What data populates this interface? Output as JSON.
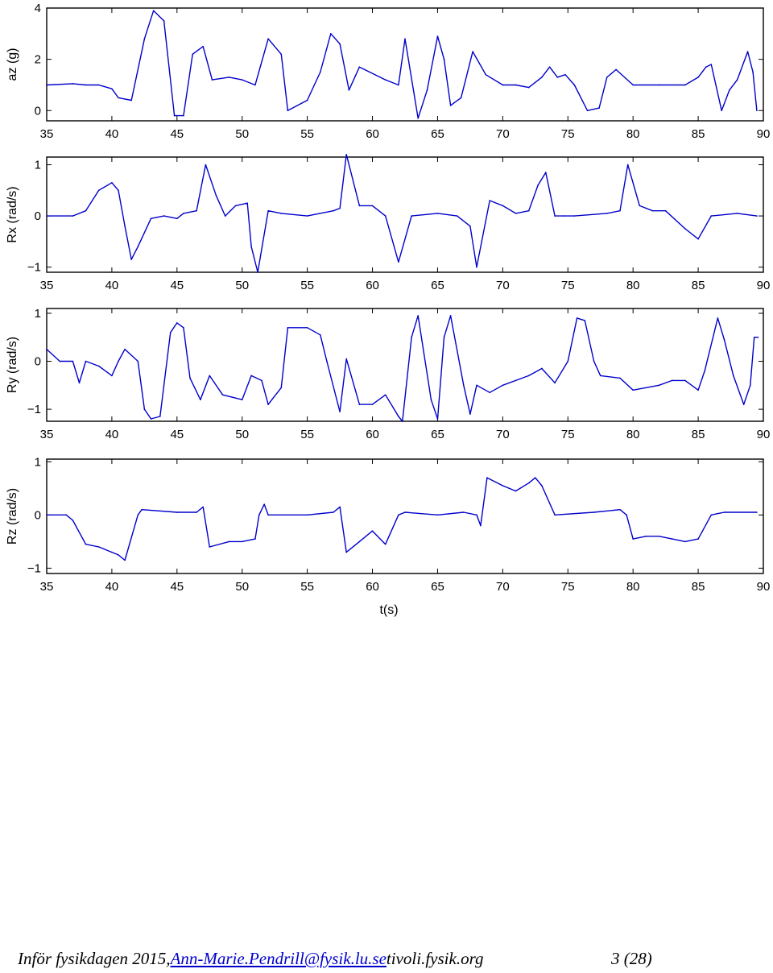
{
  "chart_data": [
    {
      "type": "line",
      "ylabel": "az (g)",
      "xlabel": "",
      "xlim": [
        35,
        90
      ],
      "ylim": [
        -0.4,
        4
      ],
      "yticks": [
        "0",
        "2",
        "4"
      ],
      "xticks": [
        "35",
        "40",
        "45",
        "50",
        "55",
        "60",
        "65",
        "70",
        "75",
        "80",
        "85",
        "90"
      ],
      "color": "#0000cc",
      "x": [
        35,
        37,
        38,
        39,
        40,
        40.5,
        41.5,
        42.5,
        43.2,
        44,
        44.8,
        45.5,
        46.2,
        47,
        47.7,
        49,
        50,
        51,
        52,
        53,
        53.5,
        55,
        56,
        56.8,
        57.5,
        58.2,
        59,
        61,
        62,
        62.5,
        63.5,
        64.2,
        65,
        65.5,
        66,
        66.8,
        67.7,
        68.7,
        70,
        71,
        72,
        73,
        73.6,
        74.2,
        74.8,
        75.5,
        76.5,
        77.4,
        78,
        78.7,
        80,
        82,
        84,
        85,
        85.6,
        86,
        86.8,
        87.4,
        88,
        88.8,
        89.2,
        89.5
      ],
      "values": [
        1.0,
        1.05,
        1.0,
        1.0,
        0.85,
        0.5,
        0.4,
        2.8,
        3.9,
        3.5,
        -0.2,
        -0.2,
        2.2,
        2.5,
        1.2,
        1.3,
        1.2,
        1.0,
        2.8,
        2.2,
        0.0,
        0.4,
        1.5,
        3.0,
        2.6,
        0.8,
        1.7,
        1.2,
        1.0,
        2.8,
        -0.3,
        0.8,
        2.9,
        2.0,
        0.2,
        0.5,
        2.3,
        1.4,
        1.0,
        1.0,
        0.9,
        1.3,
        1.7,
        1.3,
        1.4,
        1.0,
        0.0,
        0.1,
        1.3,
        1.6,
        1.0,
        1.0,
        1.0,
        1.3,
        1.7,
        1.8,
        0.0,
        0.8,
        1.2,
        2.3,
        1.5,
        0.0
      ]
    },
    {
      "type": "line",
      "ylabel": "Rx (rad/s)",
      "xlabel": "",
      "xlim": [
        35,
        90
      ],
      "ylim": [
        -1.1,
        1.15
      ],
      "yticks": [
        "−1",
        "0",
        "1"
      ],
      "xticks": [
        "35",
        "40",
        "45",
        "50",
        "55",
        "60",
        "65",
        "70",
        "75",
        "80",
        "85",
        "90"
      ],
      "color": "#0000cc",
      "x": [
        35,
        37,
        38,
        39,
        40,
        40.5,
        41,
        41.5,
        42,
        43,
        44,
        45,
        45.5,
        46.5,
        47.2,
        48,
        48.7,
        49.5,
        50.4,
        50.7,
        51.2,
        52,
        53,
        55,
        57,
        57.5,
        58,
        59,
        60,
        61,
        62,
        63,
        65,
        66.5,
        67.5,
        68,
        69,
        70,
        71,
        72,
        72.7,
        73.3,
        74,
        74.7,
        75.5,
        78,
        79,
        79.6,
        80.5,
        81.5,
        82.5,
        84,
        85,
        86,
        88,
        89.5
      ],
      "values": [
        0.0,
        0.0,
        0.1,
        0.5,
        0.65,
        0.5,
        -0.2,
        -0.85,
        -0.6,
        -0.05,
        0.0,
        -0.05,
        0.05,
        0.1,
        1.0,
        0.4,
        0.0,
        0.2,
        0.25,
        -0.6,
        -1.1,
        0.1,
        0.05,
        0.0,
        0.1,
        0.15,
        1.2,
        0.2,
        0.2,
        0.0,
        -0.9,
        0.0,
        0.05,
        0.0,
        -0.2,
        -1.0,
        0.3,
        0.2,
        0.05,
        0.1,
        0.6,
        0.85,
        0.0,
        0.0,
        0.0,
        0.05,
        0.1,
        1.0,
        0.2,
        0.1,
        0.1,
        -0.25,
        -0.45,
        0.0,
        0.05,
        0.0
      ]
    },
    {
      "type": "line",
      "ylabel": "Ry (rad/s)",
      "xlabel": "",
      "xlim": [
        35,
        90
      ],
      "ylim": [
        -1.25,
        1.1
      ],
      "yticks": [
        "−1",
        "0",
        "1"
      ],
      "xticks": [
        "35",
        "40",
        "45",
        "50",
        "55",
        "60",
        "65",
        "70",
        "75",
        "80",
        "85",
        "90"
      ],
      "color": "#0000cc",
      "x": [
        35,
        36,
        37,
        37.5,
        38,
        39,
        40,
        40.5,
        41,
        42,
        42.5,
        43,
        43.7,
        44.5,
        45,
        45.5,
        46,
        46.8,
        47.5,
        48.5,
        50,
        50.7,
        51.5,
        52,
        53,
        53.5,
        55,
        56,
        56.5,
        57.5,
        58,
        59,
        60,
        61,
        62,
        62.3,
        63,
        63.5,
        64.5,
        65,
        65.5,
        66,
        67,
        67.5,
        68,
        69,
        70,
        71,
        72,
        73,
        74,
        75,
        75.7,
        76.3,
        77,
        77.5,
        79,
        80,
        82,
        83,
        84,
        85,
        85.5,
        86.5,
        87,
        87.7,
        88.5,
        89,
        89.3,
        89.6
      ],
      "values": [
        0.25,
        0.0,
        0.0,
        -0.45,
        0.0,
        -0.1,
        -0.3,
        0.0,
        0.25,
        0.0,
        -1.0,
        -1.2,
        -1.15,
        0.6,
        0.8,
        0.7,
        -0.35,
        -0.8,
        -0.3,
        -0.7,
        -0.8,
        -0.3,
        -0.4,
        -0.9,
        -0.55,
        0.7,
        0.7,
        0.55,
        0.0,
        -1.05,
        0.05,
        -0.9,
        -0.9,
        -0.7,
        -1.15,
        -1.25,
        0.5,
        0.95,
        -0.8,
        -1.2,
        0.5,
        0.95,
        -0.5,
        -1.1,
        -0.5,
        -0.65,
        -0.5,
        -0.4,
        -0.3,
        -0.15,
        -0.45,
        0.0,
        0.9,
        0.85,
        0.0,
        -0.3,
        -0.35,
        -0.6,
        -0.5,
        -0.4,
        -0.4,
        -0.6,
        -0.2,
        0.9,
        0.45,
        -0.3,
        -0.9,
        -0.5,
        0.5,
        0.5
      ]
    },
    {
      "type": "line",
      "ylabel": "Rz (rad/s)",
      "xlabel": "t(s)",
      "xlim": [
        35,
        90
      ],
      "ylim": [
        -1.1,
        1.05
      ],
      "yticks": [
        "−1",
        "0",
        "1"
      ],
      "xticks": [
        "35",
        "40",
        "45",
        "50",
        "55",
        "60",
        "65",
        "70",
        "75",
        "80",
        "85",
        "90"
      ],
      "color": "#0000cc",
      "x": [
        35,
        36.5,
        37,
        38,
        39,
        40,
        40.5,
        41,
        42,
        42.3,
        45,
        46.5,
        47,
        47.5,
        49,
        50,
        51,
        51.3,
        51.7,
        52,
        55,
        57,
        57.5,
        58,
        59,
        60,
        61,
        62,
        62.5,
        65,
        67,
        68,
        68.3,
        68.8,
        70,
        71,
        72,
        72.5,
        73,
        74,
        77,
        79,
        79.5,
        80,
        81,
        82,
        83,
        84,
        85,
        86,
        87,
        89.5
      ],
      "values": [
        0.0,
        0.0,
        -0.1,
        -0.55,
        -0.6,
        -0.7,
        -0.75,
        -0.85,
        0.0,
        0.1,
        0.05,
        0.05,
        0.15,
        -0.6,
        -0.5,
        -0.5,
        -0.45,
        0.0,
        0.2,
        0.0,
        0.0,
        0.05,
        0.15,
        -0.7,
        -0.5,
        -0.3,
        -0.55,
        0.0,
        0.05,
        0.0,
        0.05,
        0.0,
        -0.2,
        0.7,
        0.55,
        0.45,
        0.6,
        0.7,
        0.55,
        0.0,
        0.05,
        0.1,
        0.0,
        -0.45,
        -0.4,
        -0.4,
        -0.45,
        -0.5,
        -0.45,
        0.0,
        0.05,
        0.05
      ]
    }
  ],
  "footer": {
    "prefix": "Inför fysikdagen 2015, ",
    "email": "Ann-Marie.Pendrill@fysik.lu.se",
    "site": " tivoli.fysik.org",
    "page": "3 (28)"
  }
}
